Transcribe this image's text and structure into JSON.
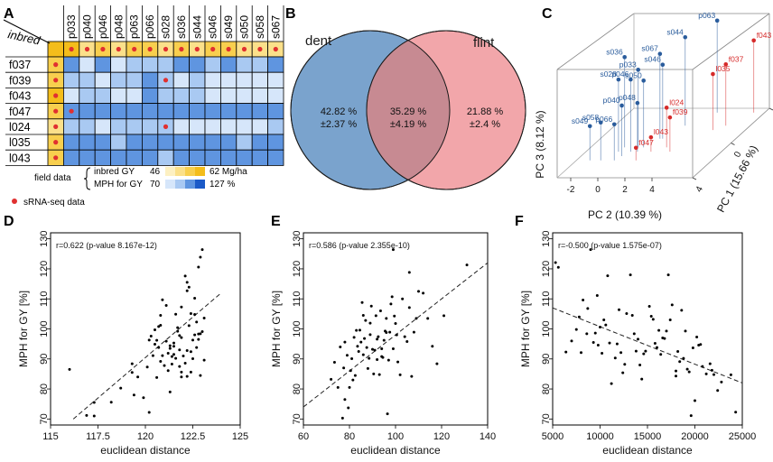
{
  "panel_letters": [
    "A",
    "B",
    "C",
    "D",
    "E",
    "F"
  ],
  "colors": {
    "dent": "#7aa3cd",
    "flint": "#f2a6aa",
    "overlap": "#c78a92",
    "inbred_dark": "#f4bd1b",
    "mph_dark": "#1b5ac8",
    "srna_dot": "#e03030",
    "pca_blue": "#2a5c9c",
    "pca_red": "#d62a2a"
  },
  "chart_data": [
    {
      "panel": "A",
      "type": "heatmap",
      "corner_label": "inbred",
      "columns": [
        "p033",
        "p040",
        "p046",
        "p048",
        "p063",
        "p066",
        "s028",
        "s036",
        "s044",
        "s046",
        "s049",
        "s050",
        "s058",
        "s067"
      ],
      "rows": [
        "f037",
        "f039",
        "f043",
        "f047",
        "l024",
        "l035",
        "l043"
      ],
      "inbred_gy_columns": [
        4,
        2,
        3,
        2,
        3,
        3,
        2,
        3,
        2,
        3,
        3,
        2,
        2,
        2
      ],
      "inbred_gy_rows": [
        3,
        3,
        4,
        3,
        2,
        3,
        3
      ],
      "mph_levels": [
        [
          3,
          1,
          3,
          1,
          2,
          2,
          2,
          3,
          3,
          2,
          3,
          2,
          2,
          3
        ],
        [
          2,
          2,
          1,
          2,
          2,
          3,
          2,
          1,
          2,
          1,
          1,
          1,
          1,
          1
        ],
        [
          1,
          2,
          2,
          1,
          1,
          3,
          2,
          2,
          2,
          1,
          1,
          1,
          1,
          1
        ],
        [
          3,
          3,
          3,
          3,
          3,
          3,
          3,
          3,
          3,
          3,
          3,
          3,
          3,
          3
        ],
        [
          2,
          2,
          1,
          2,
          2,
          2,
          2,
          1,
          1,
          1,
          1,
          1,
          1,
          2
        ],
        [
          3,
          3,
          3,
          2,
          3,
          3,
          3,
          3,
          3,
          3,
          3,
          2,
          3,
          3
        ],
        [
          3,
          3,
          3,
          3,
          3,
          3,
          2,
          3,
          3,
          3,
          3,
          3,
          3,
          3
        ]
      ],
      "srna_cells": [
        [
          1,
          6
        ],
        [
          3,
          0
        ],
        [
          4,
          6
        ]
      ],
      "legend": {
        "field_data": "field data",
        "inbred_label": "inbred GY",
        "inbred_min": "46",
        "inbred_max": "62 Mg/ha",
        "mph_label": "MPH for GY",
        "mph_min": "70",
        "mph_max": "127 %",
        "srna_label": "sRNA-seq data"
      }
    },
    {
      "panel": "B",
      "type": "venn",
      "sets": [
        {
          "name": "dent",
          "percent": "42.82 %",
          "sd": "±2.37 %"
        },
        {
          "name": "flint",
          "percent": "21.88 %",
          "sd": "±2.4 %"
        }
      ],
      "overlap": {
        "percent": "35.29 %",
        "sd": "±4.19 %"
      }
    },
    {
      "panel": "C",
      "type": "scatter",
      "title": "PCA",
      "xlabel": "PC 2 (10.39 %)",
      "ylabel": "PC 3 (8.12 %)",
      "zlabel": "PC 1 (15.66 %)",
      "pc2_ticks": [
        "-2",
        "0",
        "2",
        "4"
      ],
      "pc1_ticks": [
        "4",
        "0",
        "-4"
      ],
      "pc3_ticks": [
        "-2",
        "0",
        "2",
        "4"
      ],
      "points": [
        {
          "label": "p063",
          "group": "dent",
          "pc1": -3.5,
          "pc2": 3.5,
          "pc3": 3.6
        },
        {
          "label": "s044",
          "group": "dent",
          "pc1": -2.0,
          "pc2": 2.2,
          "pc3": 3.4
        },
        {
          "label": "s036",
          "group": "dent",
          "pc1": 0.5,
          "pc2": -0.5,
          "pc3": 3.5
        },
        {
          "label": "s067",
          "group": "dent",
          "pc1": -0.5,
          "pc2": 1.4,
          "pc3": 3.2
        },
        {
          "label": "p033",
          "group": "dent",
          "pc1": 0.5,
          "pc2": 0.5,
          "pc3": 2.8
        },
        {
          "label": "s046",
          "group": "dent",
          "pc1": -0.5,
          "pc2": 1.6,
          "pc3": 2.6
        },
        {
          "label": "s028",
          "group": "dent",
          "pc1": 1.0,
          "pc2": -0.6,
          "pc3": 2.5
        },
        {
          "label": "p046",
          "group": "dent",
          "pc1": 1.0,
          "pc2": 0.3,
          "pc3": 2.5
        },
        {
          "label": "s050",
          "group": "dent",
          "pc1": 0.5,
          "pc2": 0.9,
          "pc3": 2.2
        },
        {
          "label": "p040",
          "group": "dent",
          "pc1": 1.5,
          "pc2": 0.0,
          "pc3": 1.3
        },
        {
          "label": "p048",
          "group": "dent",
          "pc1": 1.0,
          "pc2": 0.8,
          "pc3": 1.2
        },
        {
          "label": "s049",
          "group": "dent",
          "pc1": 2.0,
          "pc2": -2.0,
          "pc3": 0.4
        },
        {
          "label": "s058",
          "group": "dent",
          "pc1": 2.0,
          "pc2": -1.2,
          "pc3": 0.6
        },
        {
          "label": "p066",
          "group": "dent",
          "pc1": 2.0,
          "pc2": -0.2,
          "pc3": 0.5
        },
        {
          "label": "f043",
          "group": "flint",
          "pc1": -3.5,
          "pc2": 6.2,
          "pc3": 2.5
        },
        {
          "label": "f037",
          "group": "flint",
          "pc1": -2.0,
          "pc2": 5.2,
          "pc3": 1.9
        },
        {
          "label": "l035",
          "group": "flint",
          "pc1": -1.5,
          "pc2": 4.6,
          "pc3": 1.6
        },
        {
          "label": "l024",
          "group": "flint",
          "pc1": 0.5,
          "pc2": 2.6,
          "pc3": 0.7
        },
        {
          "label": "f039",
          "group": "flint",
          "pc1": 1.0,
          "pc2": 3.2,
          "pc3": 0.4
        },
        {
          "label": "l043",
          "group": "flint",
          "pc1": 1.0,
          "pc2": 1.8,
          "pc3": -0.7
        },
        {
          "label": "f047",
          "group": "flint",
          "pc1": 2.0,
          "pc2": 1.4,
          "pc3": -0.8
        }
      ]
    },
    {
      "panel": "D",
      "type": "scatter",
      "annotation": "r=0.622 (p-value 8.167e-12)",
      "xlabel": "euclidean distance",
      "ylabel": "MPH for GY [%]",
      "xlim": [
        115,
        125
      ],
      "ylim": [
        68,
        132
      ],
      "xticks": [
        "115",
        "117.5",
        "120",
        "122.5",
        "125"
      ],
      "yticks": [
        "70",
        "80",
        "90",
        "100",
        "110",
        "120",
        "130"
      ],
      "trend": {
        "x": [
          116.2,
          124.0
        ],
        "y": [
          70,
          112
        ]
      },
      "x": [
        116.0,
        116.9,
        117.3,
        117.3,
        118.2,
        118.7,
        119.3,
        119.3,
        119.6,
        119.4,
        119.9,
        120.2,
        120.4,
        120.7,
        120.6,
        120.5,
        120.8,
        120.8,
        120.9,
        121.1,
        121.2,
        121.3,
        121.4,
        121.5,
        121.6,
        121.7,
        121.3,
        121.8,
        121.5,
        121.9,
        121.9,
        122.0,
        122.1,
        122.2,
        122.2,
        122.3,
        122.4,
        122.5,
        122.6,
        122.6,
        122.7,
        122.8,
        122.8,
        122.9,
        123.0,
        123.1,
        120.1,
        120.5,
        120.8,
        121.2,
        121.5,
        121.8,
        122.1,
        122.4,
        122.7,
        123.0,
        121.0,
        121.6,
        122.2,
        122.8,
        120.3,
        120.9,
        121.4,
        121.9,
        122.5,
        123.1,
        120.6,
        121.1,
        121.7,
        122.3,
        122.9,
        120.2,
        120.7,
        121.3,
        121.8,
        122.4,
        122.9,
        121.9,
        122.6,
        122.2
      ],
      "y": [
        86.5,
        71.2,
        71.0,
        75.5,
        75.6,
        80.3,
        85.5,
        88.4,
        84.0,
        78.0,
        77.1,
        72.2,
        91.1,
        93.8,
        96.2,
        99.7,
        101.2,
        104.5,
        109.7,
        107.8,
        86.1,
        93.5,
        90.8,
        91.5,
        104.9,
        100.4,
        79.0,
        97.8,
        94.2,
        97.1,
        107.3,
        91.0,
        117.6,
        115.5,
        112.7,
        113.9,
        105.1,
        96.3,
        104.8,
        110.2,
        102.3,
        98.3,
        120.6,
        123.9,
        126.4,
        103.6,
        87.3,
        94.9,
        89.2,
        91.9,
        95.3,
        93.0,
        88.6,
        92.4,
        93.8,
        99.1,
        87.8,
        90.2,
        92.8,
        96.5,
        97.6,
        91.1,
        88.3,
        85.6,
        90.1,
        89.6,
        83.8,
        95.9,
        99.2,
        101.1,
        98.4,
        96.3,
        100.8,
        94.4,
        87.5,
        85.6,
        84.5,
        84.0,
        98.0,
        84.2
      ]
    },
    {
      "panel": "E",
      "type": "scatter",
      "annotation": "r=0.586 (p-value 2.355e-10)",
      "xlabel": "euclidean distance",
      "ylabel": "MPH for GY [%]",
      "xlim": [
        60,
        140
      ],
      "ylim": [
        68,
        132
      ],
      "xticks": [
        "60",
        "80",
        "100",
        "120",
        "140"
      ],
      "yticks": [
        "70",
        "80",
        "90",
        "100",
        "110",
        "120",
        "130"
      ],
      "trend": {
        "x": [
          60,
          140
        ],
        "y": [
          74,
          122
        ]
      },
      "x": [
        72.0,
        73.5,
        75.0,
        76.0,
        77.0,
        77.5,
        78.0,
        79.0,
        79.5,
        80.0,
        80.5,
        81.0,
        81.5,
        82.0,
        82.5,
        83.0,
        83.5,
        84.0,
        84.5,
        85.0,
        85.5,
        86.0,
        86.5,
        87.0,
        87.5,
        88.0,
        88.5,
        89.0,
        89.5,
        90.0,
        90.5,
        91.0,
        91.5,
        92.0,
        92.5,
        93.0,
        93.5,
        94.0,
        94.5,
        95.0,
        95.5,
        96.0,
        96.5,
        97.0,
        97.5,
        98.0,
        98.5,
        99.0,
        99.5,
        100.0,
        100.5,
        101.0,
        102.0,
        103.0,
        104.0,
        105.0,
        106.0,
        107.0,
        108.0,
        109.0,
        110.0,
        112.0,
        114.0,
        116.0,
        118.0,
        121.0,
        131.0,
        78.0,
        94.0,
        96.0,
        89.0,
        106.0,
        86.0,
        92.0,
        99.0
      ],
      "y": [
        83.2,
        88.9,
        80.5,
        94.0,
        70.3,
        87.0,
        76.5,
        91.2,
        73.7,
        80.5,
        86.1,
        90.1,
        83.0,
        97.2,
        84.5,
        99.5,
        94.2,
        92.5,
        99.6,
        95.6,
        108.8,
        91.4,
        96.8,
        102.8,
        93.8,
        86.8,
        90.2,
        98.1,
        107.6,
        93.2,
        85.0,
        92.9,
        104.4,
        89.8,
        97.4,
        84.8,
        106.0,
        93.4,
        90.5,
        96.2,
        99.3,
        103.5,
        71.7,
        89.6,
        98.9,
        108.3,
        110.7,
        93.4,
        104.3,
        101.8,
        98.0,
        89.0,
        84.7,
        110.0,
        97.4,
        95.8,
        107.1,
        84.2,
        98.9,
        103.5,
        112.5,
        111.9,
        103.5,
        94.2,
        88.4,
        104.4,
        121.3,
        95.6,
        90.8,
        98.8,
        101.9,
        118.8,
        104.5,
        96.6,
        126.4
      ]
    },
    {
      "panel": "F",
      "type": "scatter",
      "annotation": "r=-0.500 (p-value 1.575e-07)",
      "xlabel": "euclidean distance",
      "ylabel": "MPH for GY [%]",
      "xlim": [
        5000,
        25000
      ],
      "ylim": [
        68,
        132
      ],
      "xticks": [
        "5000",
        "10000",
        "15000",
        "20000",
        "25000"
      ],
      "yticks": [
        "70",
        "80",
        "90",
        "100",
        "110",
        "120",
        "130"
      ],
      "trend": {
        "x": [
          5000,
          25000
        ],
        "y": [
          107,
          82
        ]
      },
      "x": [
        5300,
        5600,
        6400,
        7000,
        7500,
        7800,
        8200,
        8700,
        9000,
        9300,
        9700,
        10000,
        10400,
        10800,
        11200,
        11600,
        12000,
        12400,
        12800,
        13200,
        13600,
        14000,
        14400,
        14800,
        15200,
        15600,
        16000,
        16400,
        16800,
        17200,
        17600,
        18000,
        18400,
        18800,
        19200,
        19600,
        20000,
        20400,
        20800,
        21200,
        21600,
        22000,
        22800,
        24300,
        8000,
        9500,
        10200,
        11000,
        12200,
        13400,
        14600,
        15800,
        17000,
        18200,
        19400,
        20600,
        21800,
        11800,
        13800,
        15400,
        17400,
        19000,
        16600,
        18600,
        20200,
        14200,
        12600,
        10600,
        9800,
        8600,
        22400,
        23800,
        16200,
        18000,
        19800
      ],
      "y": [
        122.1,
        120.5,
        92.3,
        96.0,
        99.8,
        104.0,
        109.6,
        106.8,
        126.4,
        95.5,
        111.1,
        100.6,
        103.0,
        117.7,
        81.8,
        90.3,
        106.4,
        85.4,
        105.1,
        118.0,
        98.4,
        96.6,
        83.3,
        92.6,
        107.5,
        103.2,
        93.8,
        91.5,
        96.8,
        118.0,
        108.0,
        86.0,
        89.1,
        90.2,
        86.6,
        71.1,
        76.1,
        94.6,
        87.5,
        85.0,
        88.4,
        84.8,
        82.3,
        72.3,
        92.1,
        98.6,
        91.9,
        95.3,
        92.1,
        104.5,
        91.7,
        95.2,
        99.3,
        92.5,
        85.7,
        94.8,
        86.2,
        95.0,
        92.6,
        104.2,
        103.0,
        99.3,
        97.0,
        106.2,
        97.3,
        88.0,
        88.2,
        101.3,
        94.6,
        98.4,
        79.5,
        84.7,
        99.5,
        84.3,
        93.7
      ]
    }
  ]
}
